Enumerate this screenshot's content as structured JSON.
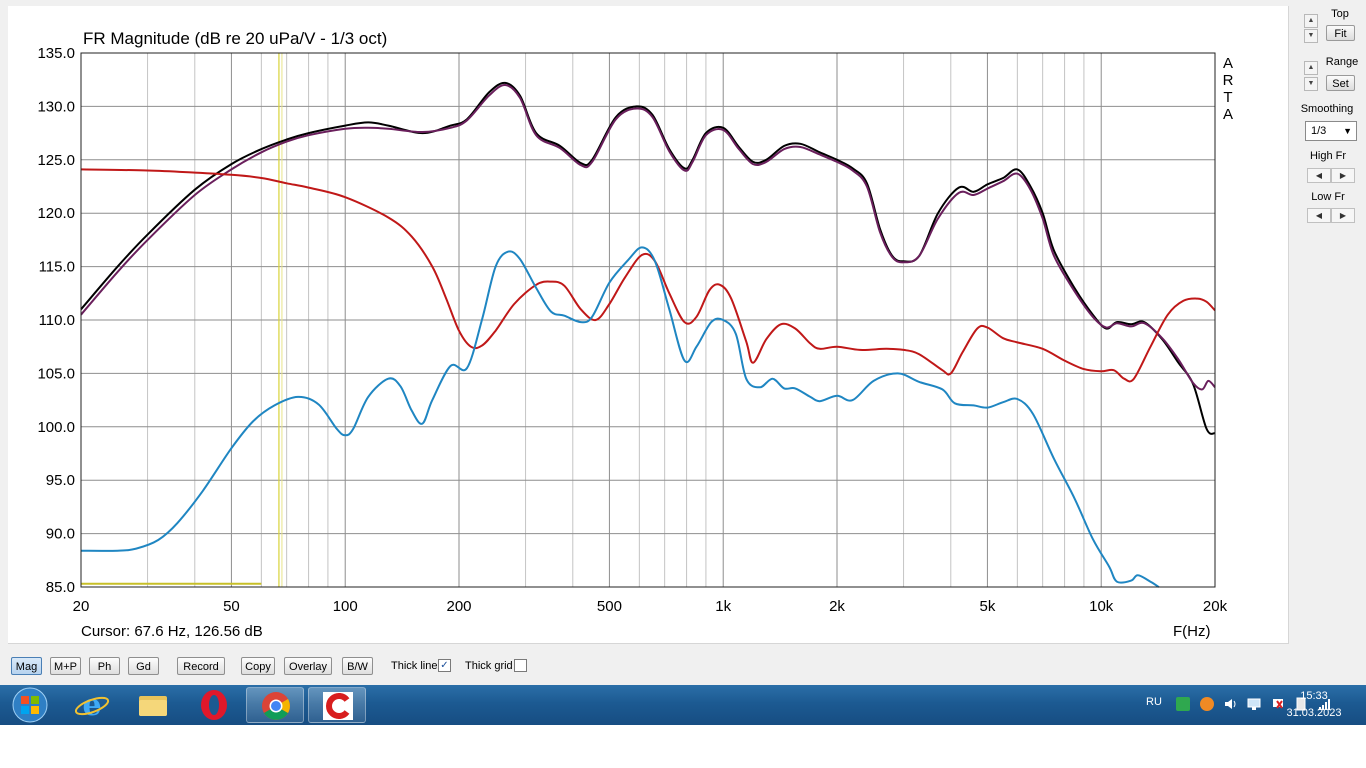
{
  "chart_data": {
    "type": "line",
    "title": "FR Magnitude (dB re 20 uPa/V - 1/3 oct)",
    "xlabel": "F(Hz)",
    "ylabel": "",
    "x_scale": "log",
    "xlim": [
      20,
      20000
    ],
    "ylim": [
      85,
      135
    ],
    "x_ticks": [
      20,
      50,
      100,
      200,
      500,
      1000,
      2000,
      5000,
      10000,
      20000
    ],
    "x_tick_labels": [
      "20",
      "50",
      "100",
      "200",
      "500",
      "1k",
      "2k",
      "5k",
      "10k",
      "20k"
    ],
    "y_ticks": [
      85,
      90,
      95,
      100,
      105,
      110,
      115,
      120,
      125,
      130,
      135
    ],
    "y_tick_labels": [
      "85.0",
      "90.0",
      "95.0",
      "100.0",
      "105.0",
      "110.0",
      "115.0",
      "120.0",
      "125.0",
      "130.0",
      "135.0"
    ],
    "grid": true,
    "watermark": [
      "A",
      "R",
      "T",
      "A"
    ],
    "cursor_text": "Cursor: 67.6 Hz, 126.56 dB",
    "cursor": {
      "freq": 67.6,
      "level": 126.56
    },
    "marker": {
      "x_from": 20,
      "x_to": 60,
      "y": 85.3
    },
    "series": [
      {
        "color": "#000000",
        "points": [
          [
            20,
            111
          ],
          [
            25,
            115
          ],
          [
            30,
            118
          ],
          [
            40,
            122.2
          ],
          [
            50,
            124.6
          ],
          [
            60,
            126
          ],
          [
            70,
            126.9
          ],
          [
            80,
            127.5
          ],
          [
            100,
            128.2
          ],
          [
            115,
            128.5
          ],
          [
            130,
            128.2
          ],
          [
            160,
            127.5
          ],
          [
            190,
            128.2
          ],
          [
            210,
            128.8
          ],
          [
            240,
            131.3
          ],
          [
            265,
            132.2
          ],
          [
            290,
            131
          ],
          [
            320,
            127.5
          ],
          [
            370,
            126.3
          ],
          [
            420,
            124.7
          ],
          [
            450,
            125
          ],
          [
            520,
            129
          ],
          [
            590,
            130
          ],
          [
            650,
            129.2
          ],
          [
            720,
            126
          ],
          [
            790,
            124.2
          ],
          [
            830,
            125
          ],
          [
            900,
            127.5
          ],
          [
            1000,
            128
          ],
          [
            1100,
            126.2
          ],
          [
            1200,
            124.8
          ],
          [
            1300,
            125
          ],
          [
            1450,
            126.3
          ],
          [
            1600,
            126.5
          ],
          [
            1800,
            125.7
          ],
          [
            2000,
            125
          ],
          [
            2200,
            124.2
          ],
          [
            2400,
            122.8
          ],
          [
            2600,
            118.5
          ],
          [
            2800,
            116
          ],
          [
            3000,
            115.5
          ],
          [
            3300,
            116
          ],
          [
            3700,
            120
          ],
          [
            4200,
            122.4
          ],
          [
            4600,
            122
          ],
          [
            5000,
            122.7
          ],
          [
            5500,
            123.3
          ],
          [
            6000,
            124.1
          ],
          [
            6500,
            122.5
          ],
          [
            7000,
            120
          ],
          [
            7500,
            116.5
          ],
          [
            8500,
            113
          ],
          [
            9500,
            110.5
          ],
          [
            10300,
            109.2
          ],
          [
            11000,
            109.8
          ],
          [
            12000,
            109.6
          ],
          [
            13000,
            109.8
          ],
          [
            14500,
            108.2
          ],
          [
            16000,
            106
          ],
          [
            17500,
            104
          ],
          [
            19000,
            99.8
          ],
          [
            20000,
            99.4
          ]
        ]
      },
      {
        "color": "#6a1f5c",
        "points": [
          [
            20,
            110.5
          ],
          [
            25,
            114.5
          ],
          [
            30,
            117.5
          ],
          [
            40,
            121.7
          ],
          [
            50,
            124.1
          ],
          [
            60,
            125.7
          ],
          [
            70,
            126.7
          ],
          [
            80,
            127.3
          ],
          [
            100,
            127.9
          ],
          [
            115,
            128
          ],
          [
            130,
            127.9
          ],
          [
            160,
            127.6
          ],
          [
            190,
            128
          ],
          [
            210,
            128.7
          ],
          [
            240,
            131
          ],
          [
            265,
            132
          ],
          [
            290,
            130.8
          ],
          [
            320,
            127.3
          ],
          [
            370,
            126.1
          ],
          [
            420,
            124.5
          ],
          [
            450,
            124.8
          ],
          [
            520,
            128.8
          ],
          [
            590,
            129.8
          ],
          [
            650,
            129
          ],
          [
            720,
            125.8
          ],
          [
            790,
            124
          ],
          [
            830,
            124.8
          ],
          [
            900,
            127.3
          ],
          [
            1000,
            127.8
          ],
          [
            1100,
            126
          ],
          [
            1200,
            124.6
          ],
          [
            1300,
            124.8
          ],
          [
            1450,
            126
          ],
          [
            1600,
            126.2
          ],
          [
            1800,
            125.5
          ],
          [
            2000,
            124.8
          ],
          [
            2200,
            124
          ],
          [
            2400,
            122.5
          ],
          [
            2600,
            118.2
          ],
          [
            2800,
            115.9
          ],
          [
            3000,
            115.4
          ],
          [
            3300,
            116
          ],
          [
            3700,
            119.5
          ],
          [
            4200,
            121.9
          ],
          [
            4600,
            121.7
          ],
          [
            5000,
            122.3
          ],
          [
            5500,
            123
          ],
          [
            6000,
            123.7
          ],
          [
            6500,
            122.2
          ],
          [
            7000,
            119.5
          ],
          [
            7500,
            116
          ],
          [
            8500,
            112.7
          ],
          [
            9500,
            110.3
          ],
          [
            10300,
            109.3
          ],
          [
            11000,
            109.7
          ],
          [
            12000,
            109.4
          ],
          [
            13000,
            109.7
          ],
          [
            14500,
            108.3
          ],
          [
            16000,
            106.3
          ],
          [
            17500,
            104.1
          ],
          [
            18500,
            103.5
          ],
          [
            19200,
            104.3
          ],
          [
            20000,
            103.7
          ]
        ]
      },
      {
        "color": "#c01818",
        "points": [
          [
            20,
            124.1
          ],
          [
            30,
            124
          ],
          [
            40,
            123.8
          ],
          [
            50,
            123.6
          ],
          [
            60,
            123.3
          ],
          [
            70,
            122.8
          ],
          [
            80,
            122.4
          ],
          [
            100,
            121.5
          ],
          [
            130,
            119.6
          ],
          [
            150,
            117.8
          ],
          [
            170,
            115
          ],
          [
            185,
            112
          ],
          [
            200,
            109
          ],
          [
            215,
            107.5
          ],
          [
            230,
            107.6
          ],
          [
            250,
            109
          ],
          [
            280,
            111.5
          ],
          [
            320,
            113.3
          ],
          [
            350,
            113.6
          ],
          [
            380,
            113.2
          ],
          [
            420,
            111
          ],
          [
            460,
            110
          ],
          [
            500,
            111.5
          ],
          [
            550,
            114
          ],
          [
            610,
            116.1
          ],
          [
            660,
            115.5
          ],
          [
            720,
            112.5
          ],
          [
            790,
            109.8
          ],
          [
            850,
            110.3
          ],
          [
            920,
            112.8
          ],
          [
            980,
            113.3
          ],
          [
            1050,
            112
          ],
          [
            1150,
            108
          ],
          [
            1200,
            106
          ],
          [
            1300,
            108.2
          ],
          [
            1420,
            109.6
          ],
          [
            1550,
            109.2
          ],
          [
            1700,
            107.8
          ],
          [
            1800,
            107.3
          ],
          [
            2000,
            107.5
          ],
          [
            2300,
            107.2
          ],
          [
            2700,
            107.3
          ],
          [
            3000,
            107.2
          ],
          [
            3300,
            106.8
          ],
          [
            3800,
            105.3
          ],
          [
            4000,
            105
          ],
          [
            4300,
            107
          ],
          [
            4700,
            109.2
          ],
          [
            5000,
            109.3
          ],
          [
            5500,
            108.3
          ],
          [
            6000,
            107.9
          ],
          [
            7000,
            107.3
          ],
          [
            8000,
            106.2
          ],
          [
            9000,
            105.4
          ],
          [
            10000,
            105.2
          ],
          [
            10800,
            105.3
          ],
          [
            11500,
            104.5
          ],
          [
            12200,
            104.5
          ],
          [
            13500,
            107.5
          ],
          [
            15000,
            110.5
          ],
          [
            16500,
            111.8
          ],
          [
            18000,
            112
          ],
          [
            19000,
            111.7
          ],
          [
            20000,
            110.9
          ]
        ]
      },
      {
        "color": "#1f86c2",
        "points": [
          [
            20,
            88.4
          ],
          [
            25,
            88.4
          ],
          [
            28,
            88.6
          ],
          [
            32,
            89.4
          ],
          [
            36,
            91
          ],
          [
            42,
            94
          ],
          [
            50,
            98
          ],
          [
            57,
            100.5
          ],
          [
            65,
            102
          ],
          [
            75,
            102.8
          ],
          [
            85,
            102.1
          ],
          [
            95,
            99.8
          ],
          [
            100,
            99.2
          ],
          [
            105,
            99.8
          ],
          [
            115,
            102.8
          ],
          [
            130,
            104.5
          ],
          [
            140,
            103.8
          ],
          [
            150,
            101.5
          ],
          [
            160,
            100.3
          ],
          [
            170,
            102.5
          ],
          [
            190,
            105.7
          ],
          [
            210,
            105.5
          ],
          [
            230,
            110
          ],
          [
            250,
            115
          ],
          [
            270,
            116.4
          ],
          [
            290,
            115.7
          ],
          [
            320,
            113
          ],
          [
            350,
            110.8
          ],
          [
            380,
            110.4
          ],
          [
            420,
            109.8
          ],
          [
            450,
            110.3
          ],
          [
            500,
            113.5
          ],
          [
            560,
            115.6
          ],
          [
            610,
            116.8
          ],
          [
            660,
            115.5
          ],
          [
            720,
            111
          ],
          [
            790,
            106.2
          ],
          [
            850,
            107.5
          ],
          [
            930,
            109.8
          ],
          [
            1000,
            110
          ],
          [
            1080,
            108.7
          ],
          [
            1150,
            104.5
          ],
          [
            1250,
            103.7
          ],
          [
            1350,
            104.5
          ],
          [
            1450,
            103.6
          ],
          [
            1550,
            103.6
          ],
          [
            1700,
            102.8
          ],
          [
            1800,
            102.4
          ],
          [
            2000,
            102.9
          ],
          [
            2200,
            102.5
          ],
          [
            2500,
            104.3
          ],
          [
            2900,
            105
          ],
          [
            3300,
            104.2
          ],
          [
            3800,
            103.5
          ],
          [
            4100,
            102.2
          ],
          [
            4600,
            102
          ],
          [
            5000,
            101.8
          ],
          [
            5500,
            102.3
          ],
          [
            6000,
            102.6
          ],
          [
            6600,
            101.2
          ],
          [
            7500,
            97
          ],
          [
            8500,
            93.3
          ],
          [
            9500,
            89.5
          ],
          [
            10500,
            86.9
          ],
          [
            11000,
            85.5
          ],
          [
            12000,
            85.6
          ],
          [
            12500,
            86.1
          ],
          [
            13500,
            85.5
          ],
          [
            14200,
            85
          ]
        ]
      }
    ]
  },
  "side_panel": {
    "top_label": "Top",
    "fit_button": "Fit",
    "range_label": "Range",
    "set_button": "Set",
    "smoothing_label": "Smoothing",
    "smoothing_value": "1/3",
    "high_fr_label": "High Fr",
    "low_fr_label": "Low Fr"
  },
  "toolbar": {
    "buttons": [
      "Mag",
      "M+P",
      "Ph",
      "Gd",
      "Record",
      "Copy",
      "Overlay",
      "B/W"
    ],
    "thick_line_label": "Thick line",
    "thick_line_checked": "✓",
    "thick_grid_label": "Thick grid",
    "thick_grid_checked": ""
  },
  "taskbar": {
    "language": "RU",
    "time": "15:33",
    "date": "31.03.2023"
  }
}
